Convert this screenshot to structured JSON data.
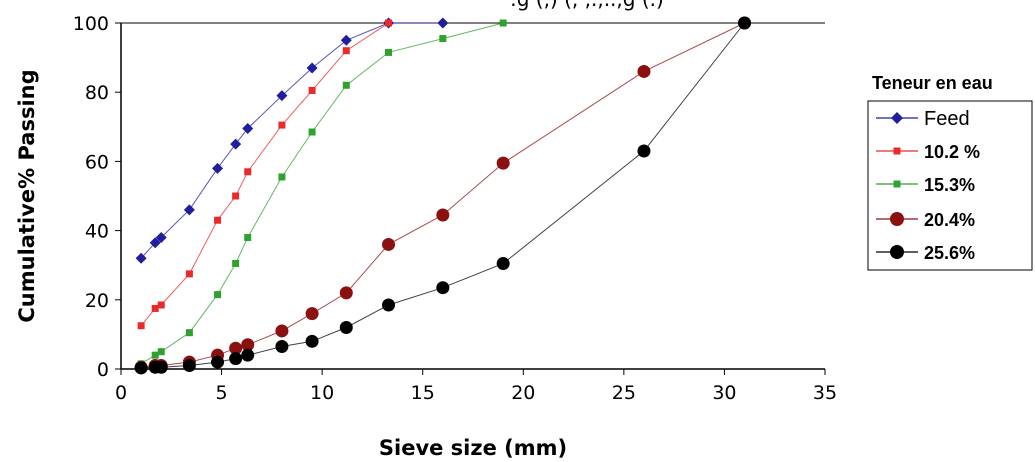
{
  "chart_data": {
    "type": "scatter",
    "title": "",
    "top_fragment": ":g (,) (, ,.,..,g (.)",
    "xlabel": "Sieve size (mm)",
    "ylabel": "Cumulative% Passing",
    "xlim": [
      0,
      35
    ],
    "ylim": [
      0,
      100
    ],
    "x_ticks": [
      0,
      5,
      10,
      15,
      20,
      25,
      30,
      35
    ],
    "y_ticks": [
      0,
      20,
      40,
      60,
      80,
      100
    ],
    "grid": false,
    "legend_title": "Teneur en eau",
    "legend_position": "right",
    "series": [
      {
        "name": "Feed",
        "marker": "diamond",
        "color": "#1f1f9e",
        "points": [
          [
            1.0,
            32
          ],
          [
            1.7,
            36.5
          ],
          [
            2.0,
            38
          ],
          [
            3.4,
            46
          ],
          [
            4.8,
            58
          ],
          [
            5.7,
            65
          ],
          [
            6.3,
            69.5
          ],
          [
            8.0,
            79
          ],
          [
            9.5,
            87
          ],
          [
            11.2,
            95
          ],
          [
            13.3,
            100
          ],
          [
            16.0,
            100
          ]
        ]
      },
      {
        "name": "10.2 %",
        "marker": "square",
        "color": "#e82a2a",
        "points": [
          [
            1.0,
            12.5
          ],
          [
            1.7,
            17.5
          ],
          [
            2.0,
            18.5
          ],
          [
            3.4,
            27.5
          ],
          [
            4.8,
            43
          ],
          [
            5.7,
            50
          ],
          [
            6.3,
            57
          ],
          [
            8.0,
            70.5
          ],
          [
            9.5,
            80.5
          ],
          [
            11.2,
            92
          ],
          [
            13.3,
            100
          ]
        ]
      },
      {
        "name": "15.3%",
        "marker": "square",
        "color": "#2ea12e",
        "points": [
          [
            1.0,
            1.5
          ],
          [
            1.7,
            4
          ],
          [
            2.0,
            5
          ],
          [
            3.4,
            10.5
          ],
          [
            4.8,
            21.5
          ],
          [
            5.7,
            30.5
          ],
          [
            6.3,
            38
          ],
          [
            8.0,
            55.5
          ],
          [
            9.5,
            68.5
          ],
          [
            11.2,
            82
          ],
          [
            13.3,
            91.5
          ],
          [
            16.0,
            95.5
          ],
          [
            19.0,
            100
          ]
        ]
      },
      {
        "name": "20.4%",
        "marker": "circle",
        "color": "#8b1010",
        "points": [
          [
            1.0,
            0.5
          ],
          [
            1.7,
            1
          ],
          [
            2.0,
            1
          ],
          [
            3.4,
            2
          ],
          [
            4.8,
            4
          ],
          [
            5.7,
            6
          ],
          [
            6.3,
            7
          ],
          [
            8.0,
            11
          ],
          [
            9.5,
            16
          ],
          [
            11.2,
            22
          ],
          [
            13.3,
            36
          ],
          [
            16.0,
            44.5
          ],
          [
            19.0,
            59.5
          ],
          [
            26.0,
            86
          ],
          [
            31.0,
            100
          ]
        ]
      },
      {
        "name": "25.6%",
        "marker": "circle",
        "color": "#000000",
        "points": [
          [
            1.0,
            0.3
          ],
          [
            1.7,
            0.5
          ],
          [
            2.0,
            0.5
          ],
          [
            3.4,
            1
          ],
          [
            4.8,
            2
          ],
          [
            5.7,
            3
          ],
          [
            6.3,
            4
          ],
          [
            8.0,
            6.5
          ],
          [
            9.5,
            8
          ],
          [
            11.2,
            12
          ],
          [
            13.3,
            18.5
          ],
          [
            16.0,
            23.5
          ],
          [
            19.0,
            30.5
          ],
          [
            26.0,
            63
          ],
          [
            31.0,
            100
          ]
        ]
      }
    ]
  }
}
